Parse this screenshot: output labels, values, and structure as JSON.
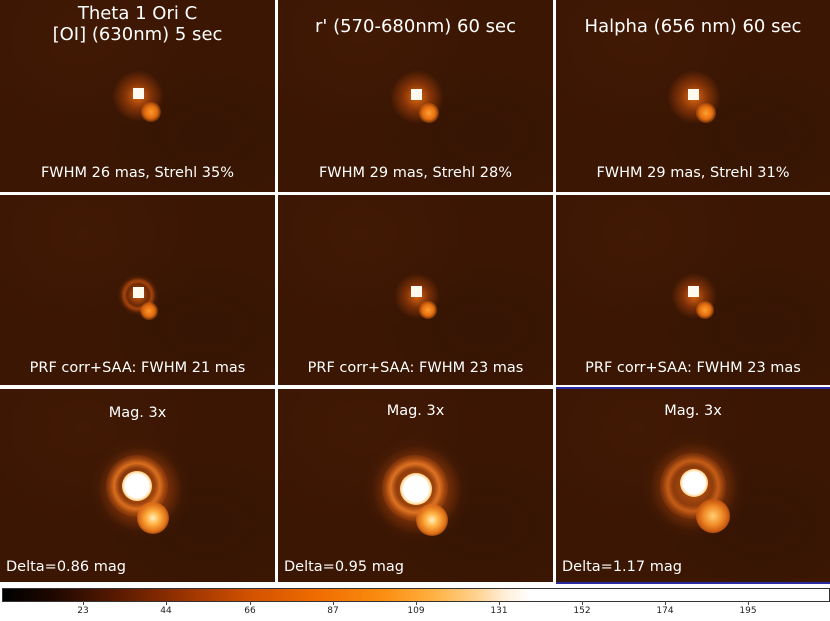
{
  "columns": [
    {
      "title_line1": "Theta 1 Ori C",
      "title_line2": "[OI] (630nm) 5 sec",
      "caption_raw": "FWHM 26 mas, Strehl 35%",
      "caption_corr": "PRF corr+SAA: FWHM 21 mas",
      "mag_label": "Mag. 3x",
      "delta": "Delta=0.86 mag"
    },
    {
      "title_line1": "r' (570-680nm) 60 sec",
      "title_line2": "",
      "caption_raw": "FWHM 29 mas, Strehl 28%",
      "caption_corr": "PRF corr+SAA: FWHM 23 mas",
      "mag_label": "Mag. 3x",
      "delta": "Delta=0.95 mag"
    },
    {
      "title_line1": "Halpha (656 nm) 60 sec",
      "title_line2": "",
      "caption_raw": "FWHM 29 mas, Strehl 31%",
      "caption_corr": "PRF corr+SAA: FWHM 23 mas",
      "mag_label": "Mag. 3x",
      "delta": "Delta=1.17 mag"
    }
  ],
  "colorbar": {
    "ticks": [
      "23",
      "44",
      "66",
      "87",
      "109",
      "131",
      "152",
      "174",
      "195"
    ]
  },
  "colors": {
    "background": "#3b1603",
    "separator": "#ffffff",
    "text": "#ffffff"
  }
}
